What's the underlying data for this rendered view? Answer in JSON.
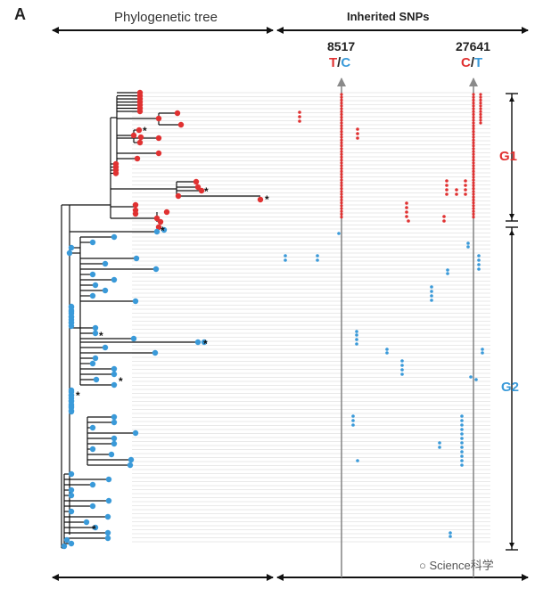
{
  "figure": {
    "panel_label": "A",
    "tree_header": "Phylogenetic tree",
    "snp_header": "Inherited SNPs",
    "snp_sites": [
      {
        "position": "8517",
        "ref": "T",
        "alt": "C",
        "ref_color": "#e03131",
        "alt_color": "#3a9ad9"
      },
      {
        "position": "27641",
        "ref": "C",
        "alt": "T",
        "ref_color": "#e03131",
        "alt_color": "#3a9ad9"
      }
    ],
    "groups": [
      {
        "name": "G1",
        "color": "#e03131"
      },
      {
        "name": "G2",
        "color": "#3a9ad9"
      }
    ],
    "watermark": "Science科学",
    "colors": {
      "g1": "#e03131",
      "g2": "#3a9ad9",
      "lines": "#111111",
      "guide": "#d4d4d4",
      "site_arrow": "#8a8a8a"
    }
  }
}
